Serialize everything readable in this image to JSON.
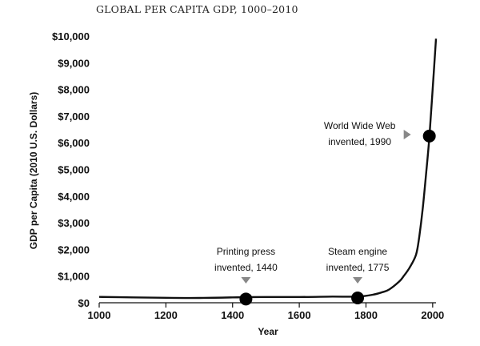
{
  "chart_data": {
    "type": "line",
    "title": "GLOBAL PER CAPITA GDP, 1000–2010",
    "xlabel": "Year",
    "ylabel": "GDP per Capita (2010 U.S. Dollars)",
    "xlim": [
      1000,
      2010
    ],
    "ylim": [
      0,
      10000
    ],
    "x_ticks": [
      1000,
      1200,
      1400,
      1600,
      1800,
      2000
    ],
    "x_tick_labels": [
      "1000",
      "1200",
      "1400",
      "1600",
      "1800",
      "2000"
    ],
    "y_ticks": [
      0,
      1000,
      2000,
      3000,
      4000,
      5000,
      6000,
      7000,
      8000,
      9000,
      10000
    ],
    "y_tick_labels": [
      "$0",
      "$1,000",
      "$2,000",
      "$3,000",
      "$4,000",
      "$5,000",
      "$6,000",
      "$7,000",
      "$8,000",
      "$9,000",
      "$10,000"
    ],
    "series": [
      {
        "name": "Global per capita GDP",
        "x": [
          1000,
          1100,
          1200,
          1300,
          1400,
          1440,
          1500,
          1600,
          1700,
          1775,
          1820,
          1850,
          1870,
          1900,
          1913,
          1930,
          1950,
          1960,
          1970,
          1980,
          1990,
          2000,
          2010
        ],
        "y": [
          220,
          200,
          185,
          180,
          200,
          210,
          215,
          215,
          230,
          230,
          300,
          400,
          500,
          800,
          1000,
          1300,
          1800,
          2500,
          3500,
          4800,
          6200,
          8000,
          9900
        ]
      }
    ],
    "annotations": [
      {
        "label_lines": [
          "Printing press",
          "invented, 1440"
        ],
        "x": 1440,
        "y": 140
      },
      {
        "label_lines": [
          "Steam engine",
          "invented, 1775"
        ],
        "x": 1775,
        "y": 180
      },
      {
        "label_lines": [
          "World Wide Web",
          "invented, 1990"
        ],
        "x": 1990,
        "y": 6250
      }
    ],
    "colors": {
      "line": "#111111",
      "marker": "#000000",
      "arrow": "#888888"
    }
  }
}
